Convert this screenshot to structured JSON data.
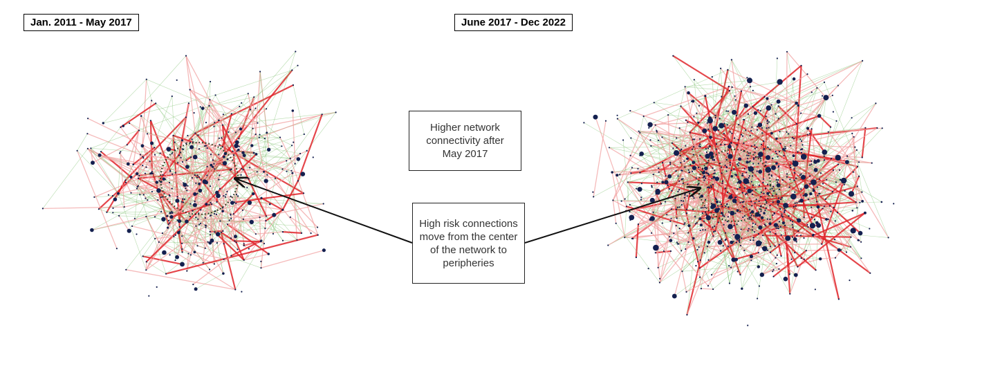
{
  "panels": {
    "left_title": "Jan. 2011 - May 2017",
    "right_title": "June 2017 - Dec 2022"
  },
  "annotations": {
    "connectivity_note": "Higher network connectivity after May 2017",
    "risk_note": "High risk connections move from the center of the network to peripheries"
  },
  "colors": {
    "node": "#14204f",
    "low_risk_edge": "#7cc06b",
    "medium_risk_edge": "#f2a3a3",
    "high_risk_edge": "#e0262b",
    "arrow": "#111111",
    "center_circle": "#1d3a1d"
  }
}
